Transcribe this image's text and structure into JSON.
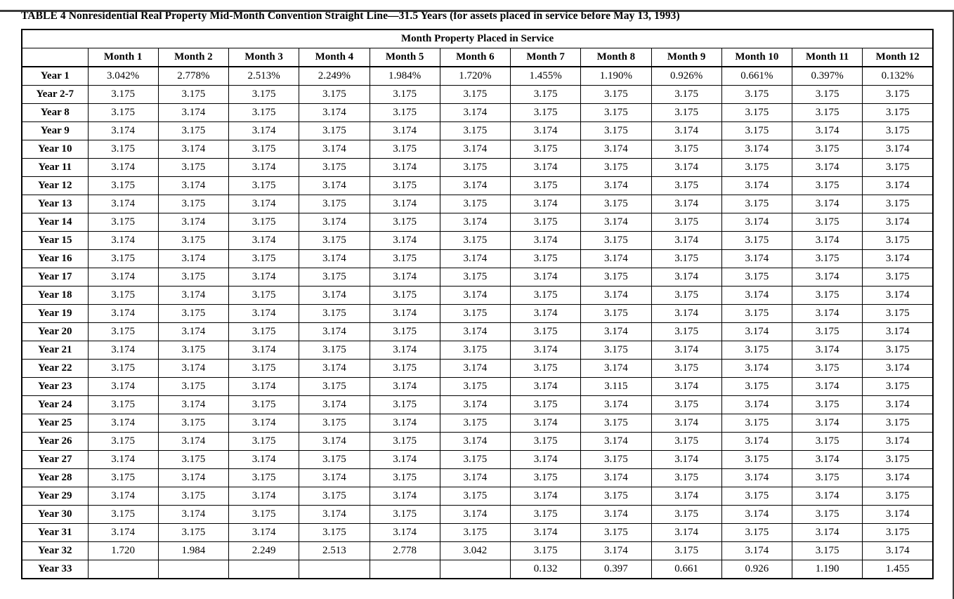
{
  "title": "TABLE 4 Nonresidential Real Property Mid-Month Convention Straight Line—31.5 Years (for assets placed in service before May 13, 1993)",
  "table": {
    "span_header": "Month Property Placed in Service",
    "corner_label": "",
    "column_headers": [
      "Month 1",
      "Month 2",
      "Month 3",
      "Month 4",
      "Month 5",
      "Month 6",
      "Month 7",
      "Month 8",
      "Month 9",
      "Month 10",
      "Month 11",
      "Month 12"
    ],
    "rows": [
      {
        "label": "Year 1",
        "values": [
          "3.042%",
          "2.778%",
          "2.513%",
          "2.249%",
          "1.984%",
          "1.720%",
          "1.455%",
          "1.190%",
          "0.926%",
          "0.661%",
          "0.397%",
          "0.132%"
        ]
      },
      {
        "label": "Year 2-7",
        "values": [
          "3.175",
          "3.175",
          "3.175",
          "3.175",
          "3.175",
          "3.175",
          "3.175",
          "3.175",
          "3.175",
          "3.175",
          "3.175",
          "3.175"
        ]
      },
      {
        "label": "Year 8",
        "values": [
          "3.175",
          "3.174",
          "3.175",
          "3.174",
          "3.175",
          "3.174",
          "3.175",
          "3.175",
          "3.175",
          "3.175",
          "3.175",
          "3.175"
        ]
      },
      {
        "label": "Year 9",
        "values": [
          "3.174",
          "3.175",
          "3.174",
          "3.175",
          "3.174",
          "3.175",
          "3.174",
          "3.175",
          "3.174",
          "3.175",
          "3.174",
          "3.175"
        ]
      },
      {
        "label": "Year 10",
        "values": [
          "3.175",
          "3.174",
          "3.175",
          "3.174",
          "3.175",
          "3.174",
          "3.175",
          "3.174",
          "3.175",
          "3.174",
          "3.175",
          "3.174"
        ]
      },
      {
        "label": "Year 11",
        "values": [
          "3.174",
          "3.175",
          "3.174",
          "3.175",
          "3.174",
          "3.175",
          "3.174",
          "3.175",
          "3.174",
          "3.175",
          "3.174",
          "3.175"
        ]
      },
      {
        "label": "Year 12",
        "values": [
          "3.175",
          "3.174",
          "3.175",
          "3.174",
          "3.175",
          "3.174",
          "3.175",
          "3.174",
          "3.175",
          "3.174",
          "3.175",
          "3.174"
        ]
      },
      {
        "label": "Year 13",
        "values": [
          "3.174",
          "3.175",
          "3.174",
          "3.175",
          "3.174",
          "3.175",
          "3.174",
          "3.175",
          "3.174",
          "3.175",
          "3.174",
          "3.175"
        ]
      },
      {
        "label": "Year 14",
        "values": [
          "3.175",
          "3.174",
          "3.175",
          "3.174",
          "3.175",
          "3.174",
          "3.175",
          "3.174",
          "3.175",
          "3.174",
          "3.175",
          "3.174"
        ]
      },
      {
        "label": "Year 15",
        "values": [
          "3.174",
          "3.175",
          "3.174",
          "3.175",
          "3.174",
          "3.175",
          "3.174",
          "3.175",
          "3.174",
          "3.175",
          "3.174",
          "3.175"
        ]
      },
      {
        "label": "Year 16",
        "values": [
          "3.175",
          "3.174",
          "3.175",
          "3.174",
          "3.175",
          "3.174",
          "3.175",
          "3.174",
          "3.175",
          "3.174",
          "3.175",
          "3.174"
        ]
      },
      {
        "label": "Year 17",
        "values": [
          "3.174",
          "3.175",
          "3.174",
          "3.175",
          "3.174",
          "3.175",
          "3.174",
          "3.175",
          "3.174",
          "3.175",
          "3.174",
          "3.175"
        ]
      },
      {
        "label": "Year 18",
        "values": [
          "3.175",
          "3.174",
          "3.175",
          "3.174",
          "3.175",
          "3.174",
          "3.175",
          "3.174",
          "3.175",
          "3.174",
          "3.175",
          "3.174"
        ]
      },
      {
        "label": "Year 19",
        "values": [
          "3.174",
          "3.175",
          "3.174",
          "3.175",
          "3.174",
          "3.175",
          "3.174",
          "3.175",
          "3.174",
          "3.175",
          "3.174",
          "3.175"
        ]
      },
      {
        "label": "Year 20",
        "values": [
          "3.175",
          "3.174",
          "3.175",
          "3.174",
          "3.175",
          "3.174",
          "3.175",
          "3.174",
          "3.175",
          "3.174",
          "3.175",
          "3.174"
        ]
      },
      {
        "label": "Year 21",
        "values": [
          "3.174",
          "3.175",
          "3.174",
          "3.175",
          "3.174",
          "3.175",
          "3.174",
          "3.175",
          "3.174",
          "3.175",
          "3.174",
          "3.175"
        ]
      },
      {
        "label": "Year 22",
        "values": [
          "3.175",
          "3.174",
          "3.175",
          "3.174",
          "3.175",
          "3.174",
          "3.175",
          "3.174",
          "3.175",
          "3.174",
          "3.175",
          "3.174"
        ]
      },
      {
        "label": "Year 23",
        "values": [
          "3.174",
          "3.175",
          "3.174",
          "3.175",
          "3.174",
          "3.175",
          "3.174",
          "3.115",
          "3.174",
          "3.175",
          "3.174",
          "3.175"
        ]
      },
      {
        "label": "Year 24",
        "values": [
          "3.175",
          "3.174",
          "3.175",
          "3.174",
          "3.175",
          "3.174",
          "3.175",
          "3.174",
          "3.175",
          "3.174",
          "3.175",
          "3.174"
        ]
      },
      {
        "label": "Year 25",
        "values": [
          "3.174",
          "3.175",
          "3.174",
          "3.175",
          "3.174",
          "3.175",
          "3.174",
          "3.175",
          "3.174",
          "3.175",
          "3.174",
          "3.175"
        ]
      },
      {
        "label": "Year 26",
        "values": [
          "3.175",
          "3.174",
          "3.175",
          "3.174",
          "3.175",
          "3.174",
          "3.175",
          "3.174",
          "3.175",
          "3.174",
          "3.175",
          "3.174"
        ]
      },
      {
        "label": "Year 27",
        "values": [
          "3.174",
          "3.175",
          "3.174",
          "3.175",
          "3.174",
          "3.175",
          "3.174",
          "3.175",
          "3.174",
          "3.175",
          "3.174",
          "3.175"
        ]
      },
      {
        "label": "Year 28",
        "values": [
          "3.175",
          "3.174",
          "3.175",
          "3.174",
          "3.175",
          "3.174",
          "3.175",
          "3.174",
          "3.175",
          "3.174",
          "3.175",
          "3.174"
        ]
      },
      {
        "label": "Year 29",
        "values": [
          "3.174",
          "3.175",
          "3.174",
          "3.175",
          "3.174",
          "3.175",
          "3.174",
          "3.175",
          "3.174",
          "3.175",
          "3.174",
          "3.175"
        ]
      },
      {
        "label": "Year 30",
        "values": [
          "3.175",
          "3.174",
          "3.175",
          "3.174",
          "3.175",
          "3.174",
          "3.175",
          "3.174",
          "3.175",
          "3.174",
          "3.175",
          "3.174"
        ]
      },
      {
        "label": "Year 31",
        "values": [
          "3.174",
          "3.175",
          "3.174",
          "3.175",
          "3.174",
          "3.175",
          "3.174",
          "3.175",
          "3.174",
          "3.175",
          "3.174",
          "3.175"
        ]
      },
      {
        "label": "Year 32",
        "values": [
          "1.720",
          "1.984",
          "2.249",
          "2.513",
          "2.778",
          "3.042",
          "3.175",
          "3.174",
          "3.175",
          "3.174",
          "3.175",
          "3.174"
        ]
      },
      {
        "label": "Year 33",
        "values": [
          "",
          "",
          "",
          "",
          "",
          "",
          "0.132",
          "0.397",
          "0.661",
          "0.926",
          "1.190",
          "1.455"
        ]
      }
    ]
  }
}
